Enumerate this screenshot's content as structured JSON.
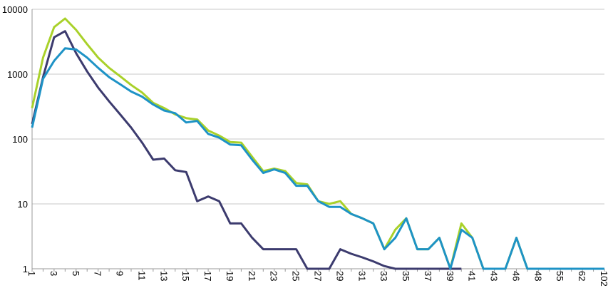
{
  "chart_data": {
    "type": "line",
    "categories": [
      "1",
      null,
      "3",
      null,
      "5",
      null,
      "7",
      null,
      "9",
      null,
      "11",
      null,
      "13",
      null,
      "15",
      null,
      "17",
      null,
      "19",
      null,
      "21",
      null,
      "23",
      null,
      "25",
      null,
      "27",
      null,
      "29",
      null,
      "31",
      null,
      "33",
      null,
      "35",
      null,
      "37",
      null,
      "39",
      null,
      "41",
      null,
      "43",
      null,
      "46",
      null,
      "48",
      null,
      "55",
      null,
      "62",
      null,
      "102"
    ],
    "series": [
      {
        "color": "#a9d12a",
        "values": [
          300,
          1800,
          5300,
          7200,
          4800,
          2900,
          1800,
          1250,
          930,
          680,
          520,
          360,
          300,
          240,
          210,
          200,
          135,
          113,
          90,
          88,
          53,
          32,
          35,
          32,
          21,
          20,
          11,
          10,
          11,
          7,
          6,
          5,
          2,
          4,
          6,
          2,
          2,
          3,
          1,
          5,
          3,
          1,
          1,
          1,
          3,
          1,
          1,
          1,
          1,
          1,
          1,
          1,
          1
        ]
      },
      {
        "color": "#3c3b6e",
        "values": [
          170,
          900,
          3700,
          4600,
          2100,
          1100,
          620,
          380,
          240,
          150,
          88,
          48,
          50,
          33,
          31,
          11,
          13,
          11,
          5,
          5,
          3,
          2,
          2,
          2,
          2,
          1,
          1,
          1,
          2,
          1.7,
          1.5,
          1.3,
          1.1,
          1,
          1,
          1,
          1,
          1,
          1,
          1,
          null,
          null,
          null,
          null,
          null,
          null,
          null,
          null,
          null,
          null,
          null,
          null,
          null
        ]
      },
      {
        "color": "#1e93c6",
        "values": [
          150,
          850,
          1600,
          2500,
          2400,
          1800,
          1250,
          900,
          700,
          540,
          450,
          340,
          275,
          250,
          180,
          190,
          120,
          105,
          82,
          80,
          48,
          30,
          34,
          30,
          19,
          19,
          11,
          9,
          9,
          7,
          6,
          5,
          2,
          3,
          6,
          2,
          2,
          3,
          1,
          4,
          3,
          1,
          1,
          1,
          3,
          1,
          1,
          1,
          1,
          1,
          1,
          1,
          1
        ]
      }
    ],
    "log_scale": true,
    "grid": true,
    "ylim": [
      1,
      10000
    ],
    "yticks": [
      1,
      10,
      100,
      1000,
      10000
    ]
  }
}
